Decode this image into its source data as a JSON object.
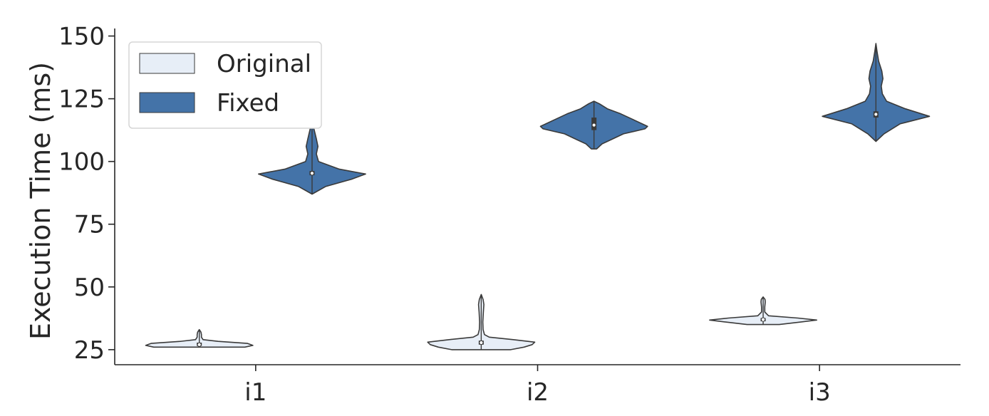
{
  "chart_data": {
    "type": "violin",
    "title": "",
    "xlabel": "",
    "ylabel": "Execution Time (ms)",
    "categories": [
      "i1",
      "i2",
      "i3"
    ],
    "yticks": [
      25,
      50,
      75,
      100,
      125,
      150
    ],
    "ylim": [
      19,
      153
    ],
    "legend_position": "top-left",
    "grid": false,
    "series": [
      {
        "name": "Original",
        "color": "#e7eef7",
        "distributions": [
          {
            "category": "i1",
            "min": 26,
            "q1": 26.5,
            "median": 27,
            "q3": 27.8,
            "max": 33,
            "density": [
              [
                26,
                0.85
              ],
              [
                26.7,
                1.0
              ],
              [
                27.5,
                0.9
              ],
              [
                28.3,
                0.35
              ],
              [
                29,
                0.07
              ],
              [
                30,
                0.04
              ],
              [
                31,
                0.04
              ],
              [
                32,
                0.03
              ],
              [
                33,
                0
              ]
            ]
          },
          {
            "category": "i2",
            "min": 25,
            "q1": 27,
            "median": 27.8,
            "q3": 28.6,
            "max": 47,
            "density": [
              [
                25,
                0.55
              ],
              [
                26,
                0.8
              ],
              [
                27,
                0.95
              ],
              [
                28,
                1.0
              ],
              [
                29,
                0.6
              ],
              [
                30,
                0.15
              ],
              [
                31,
                0.06
              ],
              [
                33,
                0.035
              ],
              [
                36,
                0.03
              ],
              [
                40,
                0.04
              ],
              [
                43,
                0.05
              ],
              [
                45,
                0.035
              ],
              [
                47,
                0
              ]
            ]
          },
          {
            "category": "i3",
            "min": 35,
            "q1": 36.3,
            "median": 37,
            "q3": 37.6,
            "max": 46,
            "density": [
              [
                35,
                0.3
              ],
              [
                36,
                0.7
              ],
              [
                36.8,
                1.0
              ],
              [
                37.6,
                0.65
              ],
              [
                38.5,
                0.1
              ],
              [
                40,
                0.03
              ],
              [
                42,
                0.03
              ],
              [
                44,
                0.04
              ],
              [
                45,
                0.035
              ],
              [
                46,
                0
              ]
            ]
          }
        ]
      },
      {
        "name": "Fixed",
        "color": "#4473a8",
        "distributions": [
          {
            "category": "i1",
            "min": 87,
            "q1": 94.5,
            "median": 95.3,
            "q3": 96.2,
            "max": 118,
            "density": [
              [
                87,
                0
              ],
              [
                90,
                0.25
              ],
              [
                93,
                0.75
              ],
              [
                95,
                1.0
              ],
              [
                97,
                0.5
              ],
              [
                100,
                0.12
              ],
              [
                103,
                0.08
              ],
              [
                106,
                0.11
              ],
              [
                109,
                0.08
              ],
              [
                113,
                0.035
              ],
              [
                118,
                0
              ]
            ]
          },
          {
            "category": "i2",
            "min": 105,
            "q1": 112.5,
            "median": 114.5,
            "q3": 117.5,
            "max": 124,
            "density": [
              [
                105,
                0.05
              ],
              [
                107,
                0.15
              ],
              [
                109,
                0.35
              ],
              [
                111,
                0.55
              ],
              [
                113,
                0.95
              ],
              [
                114,
                1.0
              ],
              [
                115,
                0.9
              ],
              [
                117,
                0.7
              ],
              [
                119,
                0.5
              ],
              [
                121,
                0.25
              ],
              [
                123,
                0.1
              ],
              [
                124,
                0
              ]
            ]
          },
          {
            "category": "i3",
            "min": 108,
            "q1": 117.5,
            "median": 118.8,
            "q3": 120,
            "max": 147,
            "density": [
              [
                108,
                0
              ],
              [
                111,
                0.15
              ],
              [
                115,
                0.45
              ],
              [
                118,
                1.0
              ],
              [
                121,
                0.55
              ],
              [
                124,
                0.2
              ],
              [
                127,
                0.12
              ],
              [
                130,
                0.1
              ],
              [
                133,
                0.13
              ],
              [
                136,
                0.11
              ],
              [
                140,
                0.05
              ],
              [
                144,
                0.02
              ],
              [
                147,
                0
              ]
            ]
          }
        ]
      }
    ]
  }
}
